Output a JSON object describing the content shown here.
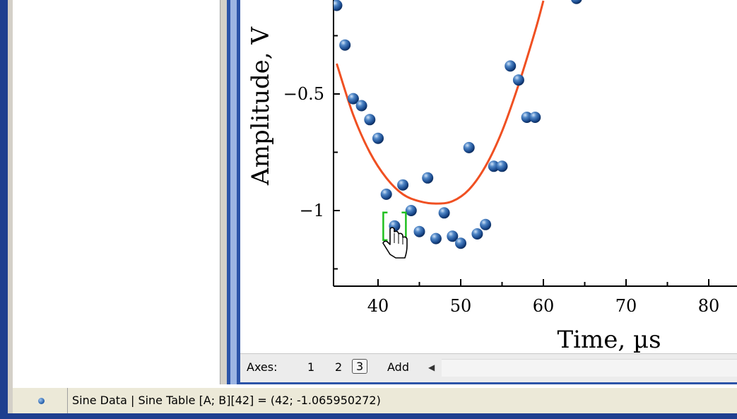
{
  "axes_bar": {
    "label": "Axes:",
    "items": [
      "1",
      "2",
      "3"
    ],
    "selected": "3",
    "add_label": "Add"
  },
  "status": {
    "text": "Sine Data | Sine Table [A; B][42] = (42; -1.065950272)"
  },
  "colors": {
    "fit_curve": "#f05022",
    "points": "#1e5aa8",
    "selection": "#1fbf1f"
  },
  "chart_data": {
    "type": "scatter",
    "xlabel": "Time, µs",
    "ylabel": "Amplitude, V",
    "x_ticks": [
      "40",
      "50",
      "60",
      "70",
      "80"
    ],
    "y_ticks": [
      "−0.5",
      "−1"
    ],
    "xlim": [
      35,
      84
    ],
    "ylim": [
      -1.26,
      -0.1
    ],
    "points": [
      {
        "x": 35,
        "y": -0.12
      },
      {
        "x": 36,
        "y": -0.29
      },
      {
        "x": 37,
        "y": -0.52
      },
      {
        "x": 38,
        "y": -0.55
      },
      {
        "x": 39,
        "y": -0.61
      },
      {
        "x": 40,
        "y": -0.69
      },
      {
        "x": 41,
        "y": -0.93
      },
      {
        "x": 42,
        "y": -1.066
      },
      {
        "x": 43,
        "y": -0.89
      },
      {
        "x": 44,
        "y": -1.0
      },
      {
        "x": 45,
        "y": -1.09
      },
      {
        "x": 46,
        "y": -0.86
      },
      {
        "x": 47,
        "y": -1.12
      },
      {
        "x": 48,
        "y": -1.01
      },
      {
        "x": 49,
        "y": -1.11
      },
      {
        "x": 50,
        "y": -1.14
      },
      {
        "x": 51,
        "y": -0.73
      },
      {
        "x": 52,
        "y": -1.1
      },
      {
        "x": 53,
        "y": -1.06
      },
      {
        "x": 54,
        "y": -0.81
      },
      {
        "x": 55,
        "y": -0.81
      },
      {
        "x": 56,
        "y": -0.38
      },
      {
        "x": 57,
        "y": -0.44
      },
      {
        "x": 58,
        "y": -0.6
      },
      {
        "x": 59,
        "y": -0.6
      },
      {
        "x": 64,
        "y": -0.09
      }
    ],
    "fit": [
      {
        "x": 35,
        "y": -0.37
      },
      {
        "x": 37,
        "y": -0.59
      },
      {
        "x": 39,
        "y": -0.75
      },
      {
        "x": 41,
        "y": -0.86
      },
      {
        "x": 43,
        "y": -0.93
      },
      {
        "x": 45,
        "y": -0.96
      },
      {
        "x": 47,
        "y": -0.97
      },
      {
        "x": 49,
        "y": -0.96
      },
      {
        "x": 51,
        "y": -0.91
      },
      {
        "x": 53,
        "y": -0.81
      },
      {
        "x": 55,
        "y": -0.66
      },
      {
        "x": 57,
        "y": -0.46
      },
      {
        "x": 59,
        "y": -0.23
      },
      {
        "x": 60,
        "y": -0.1
      }
    ],
    "selected_x": 42
  }
}
